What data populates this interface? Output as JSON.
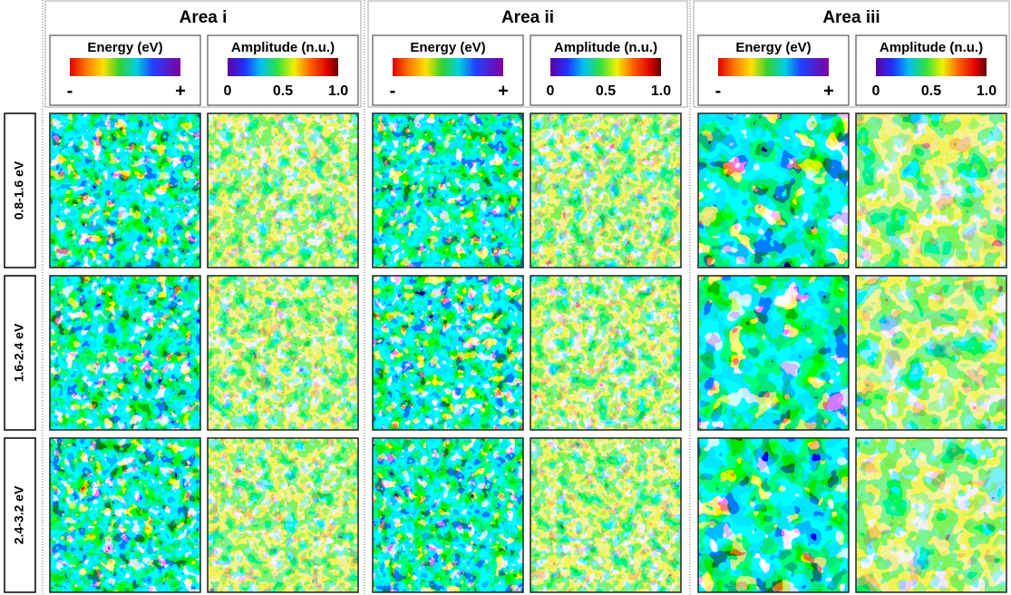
{
  "areas": [
    {
      "title": "Area i",
      "colorbars": [
        {
          "label": "Energy (eV)",
          "ticks": [
            "-",
            "+"
          ]
        },
        {
          "label": "Amplitude (n.u.)",
          "ticks": [
            "0",
            "0.5",
            "1.0"
          ]
        }
      ]
    },
    {
      "title": "Area ii",
      "colorbars": [
        {
          "label": "Energy (eV)",
          "ticks": [
            "-",
            "+"
          ]
        },
        {
          "label": "Amplitude (n.u.)",
          "ticks": [
            "0",
            "0.5",
            "1.0"
          ]
        }
      ]
    },
    {
      "title": "Area iii",
      "colorbars": [
        {
          "label": "Energy (eV)",
          "ticks": [
            "-",
            "+"
          ]
        },
        {
          "label": "Amplitude (n.u.)",
          "ticks": [
            "0",
            "0.5",
            "1.0"
          ]
        }
      ]
    }
  ],
  "rows": [
    {
      "label": "0.8-1.6 eV"
    },
    {
      "label": "1.6-2.4 eV"
    },
    {
      "label": "2.4-3.2 eV"
    }
  ]
}
